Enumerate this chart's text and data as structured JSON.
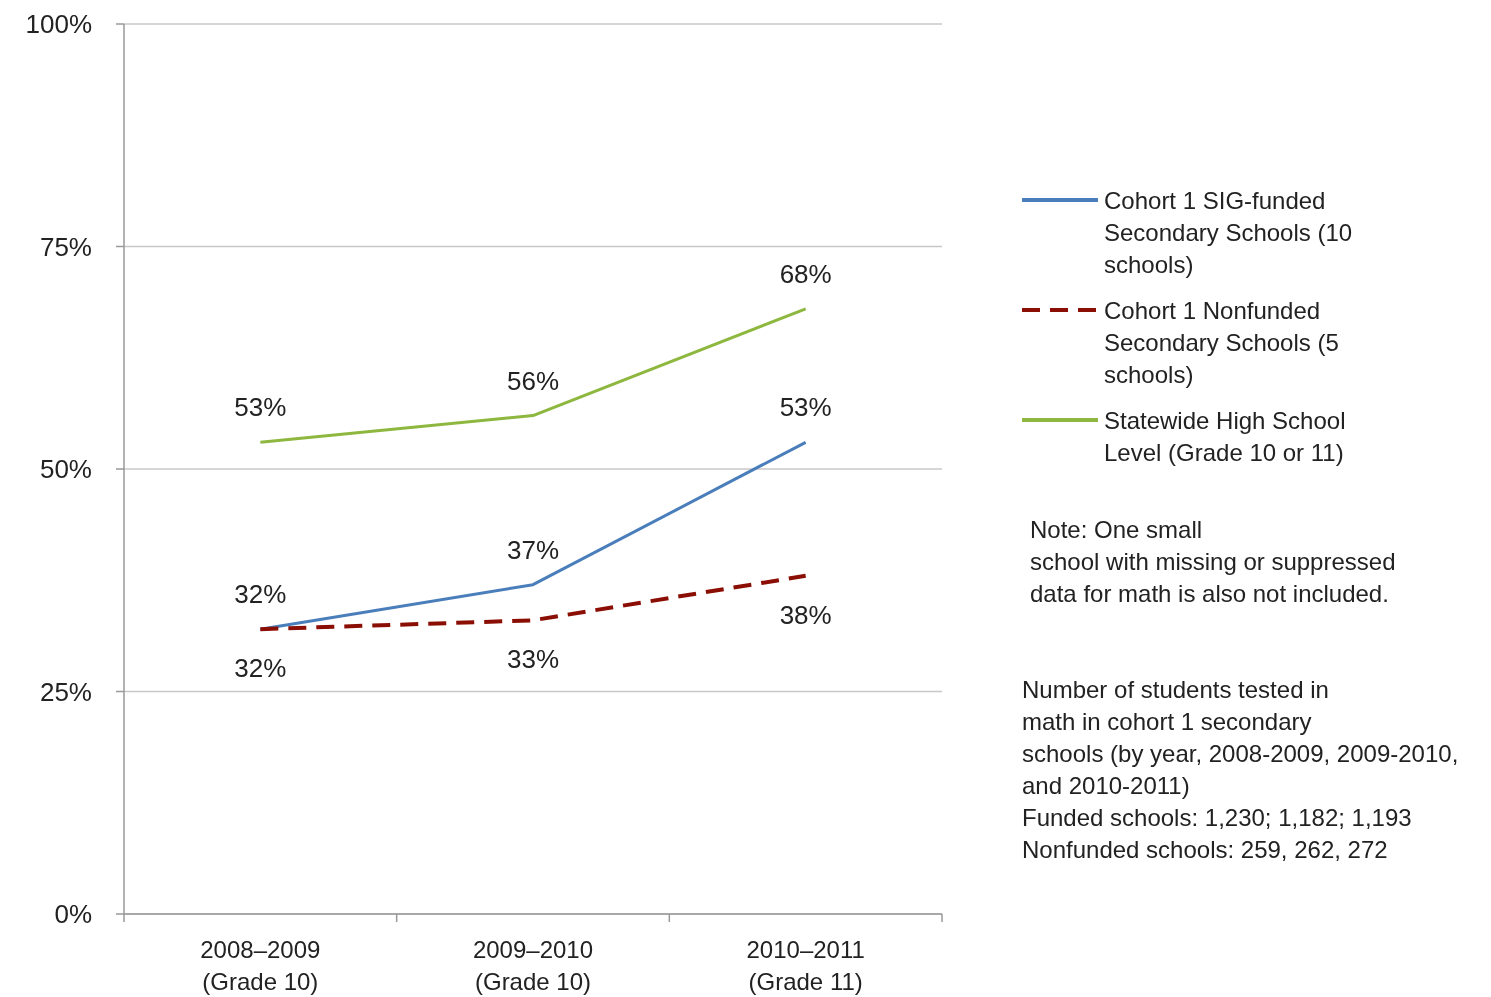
{
  "chart_data": {
    "type": "line",
    "categories": [
      "2008–2009\n(Grade 10)",
      "2009–2010\n(Grade 10)",
      "2010–2011\n(Grade 11)"
    ],
    "series": [
      {
        "name": "Cohort 1 SIG-funded Secondary Schools (10 schools)",
        "color": "#4a7ebb",
        "values": [
          32,
          37,
          53
        ],
        "value_labels": [
          "32%",
          "37%",
          "53%"
        ],
        "line_style": "solid"
      },
      {
        "name": "Cohort 1 Nonfunded Secondary Schools (5 schools)",
        "color": "#8b0e04",
        "values": [
          32,
          33,
          38
        ],
        "value_labels": [
          "32%",
          "33%",
          "38%"
        ],
        "line_style": "dashed"
      },
      {
        "name": "Statewide High School Level (Grade 10 or 11)",
        "color": "#8db73e",
        "values": [
          53,
          56,
          68
        ],
        "value_labels": [
          "53%",
          "56%",
          "68%"
        ],
        "line_style": "solid"
      }
    ],
    "ylim": [
      0,
      100
    ],
    "yticks": [
      {
        "value": 0,
        "label": "0%"
      },
      {
        "value": 25,
        "label": "25%"
      },
      {
        "value": 50,
        "label": "50%"
      },
      {
        "value": 75,
        "label": "75%"
      },
      {
        "value": 100,
        "label": "100%"
      }
    ],
    "grid": "y",
    "legend": "right",
    "annotations": [
      "Note: One small\nschool with missing or suppressed\ndata for math is also not included.",
      "Number of students tested in\nmath in cohort 1 secondary\nschools (by year, 2008-2009, 2009-2010,\nand 2010-2011)\nFunded schools: 1,230; 1,182; 1,193\nNonfunded schools: 259, 262, 272"
    ]
  }
}
